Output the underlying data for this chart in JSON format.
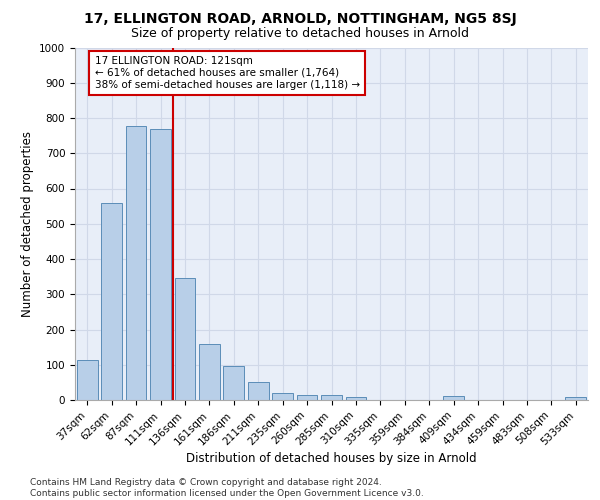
{
  "title1": "17, ELLINGTON ROAD, ARNOLD, NOTTINGHAM, NG5 8SJ",
  "title2": "Size of property relative to detached houses in Arnold",
  "xlabel": "Distribution of detached houses by size in Arnold",
  "ylabel": "Number of detached properties",
  "categories": [
    "37sqm",
    "62sqm",
    "87sqm",
    "111sqm",
    "136sqm",
    "161sqm",
    "186sqm",
    "211sqm",
    "235sqm",
    "260sqm",
    "285sqm",
    "310sqm",
    "335sqm",
    "359sqm",
    "384sqm",
    "409sqm",
    "434sqm",
    "459sqm",
    "483sqm",
    "508sqm",
    "533sqm"
  ],
  "values": [
    113,
    558,
    778,
    770,
    345,
    160,
    97,
    50,
    20,
    13,
    13,
    8,
    0,
    0,
    0,
    10,
    0,
    0,
    0,
    0,
    8
  ],
  "bar_color": "#b8cfe8",
  "bar_edge_color": "#5b8db8",
  "vline_color": "#cc0000",
  "annotation_text": "17 ELLINGTON ROAD: 121sqm\n← 61% of detached houses are smaller (1,764)\n38% of semi-detached houses are larger (1,118) →",
  "annotation_box_color": "white",
  "annotation_box_edge_color": "#cc0000",
  "ylim": [
    0,
    1000
  ],
  "yticks": [
    0,
    100,
    200,
    300,
    400,
    500,
    600,
    700,
    800,
    900,
    1000
  ],
  "grid_color": "#d0d8e8",
  "background_color": "#e8eef8",
  "footer_text": "Contains HM Land Registry data © Crown copyright and database right 2024.\nContains public sector information licensed under the Open Government Licence v3.0.",
  "title1_fontsize": 10,
  "title2_fontsize": 9,
  "xlabel_fontsize": 8.5,
  "ylabel_fontsize": 8.5,
  "tick_fontsize": 7.5,
  "annotation_fontsize": 7.5,
  "footer_fontsize": 6.5
}
